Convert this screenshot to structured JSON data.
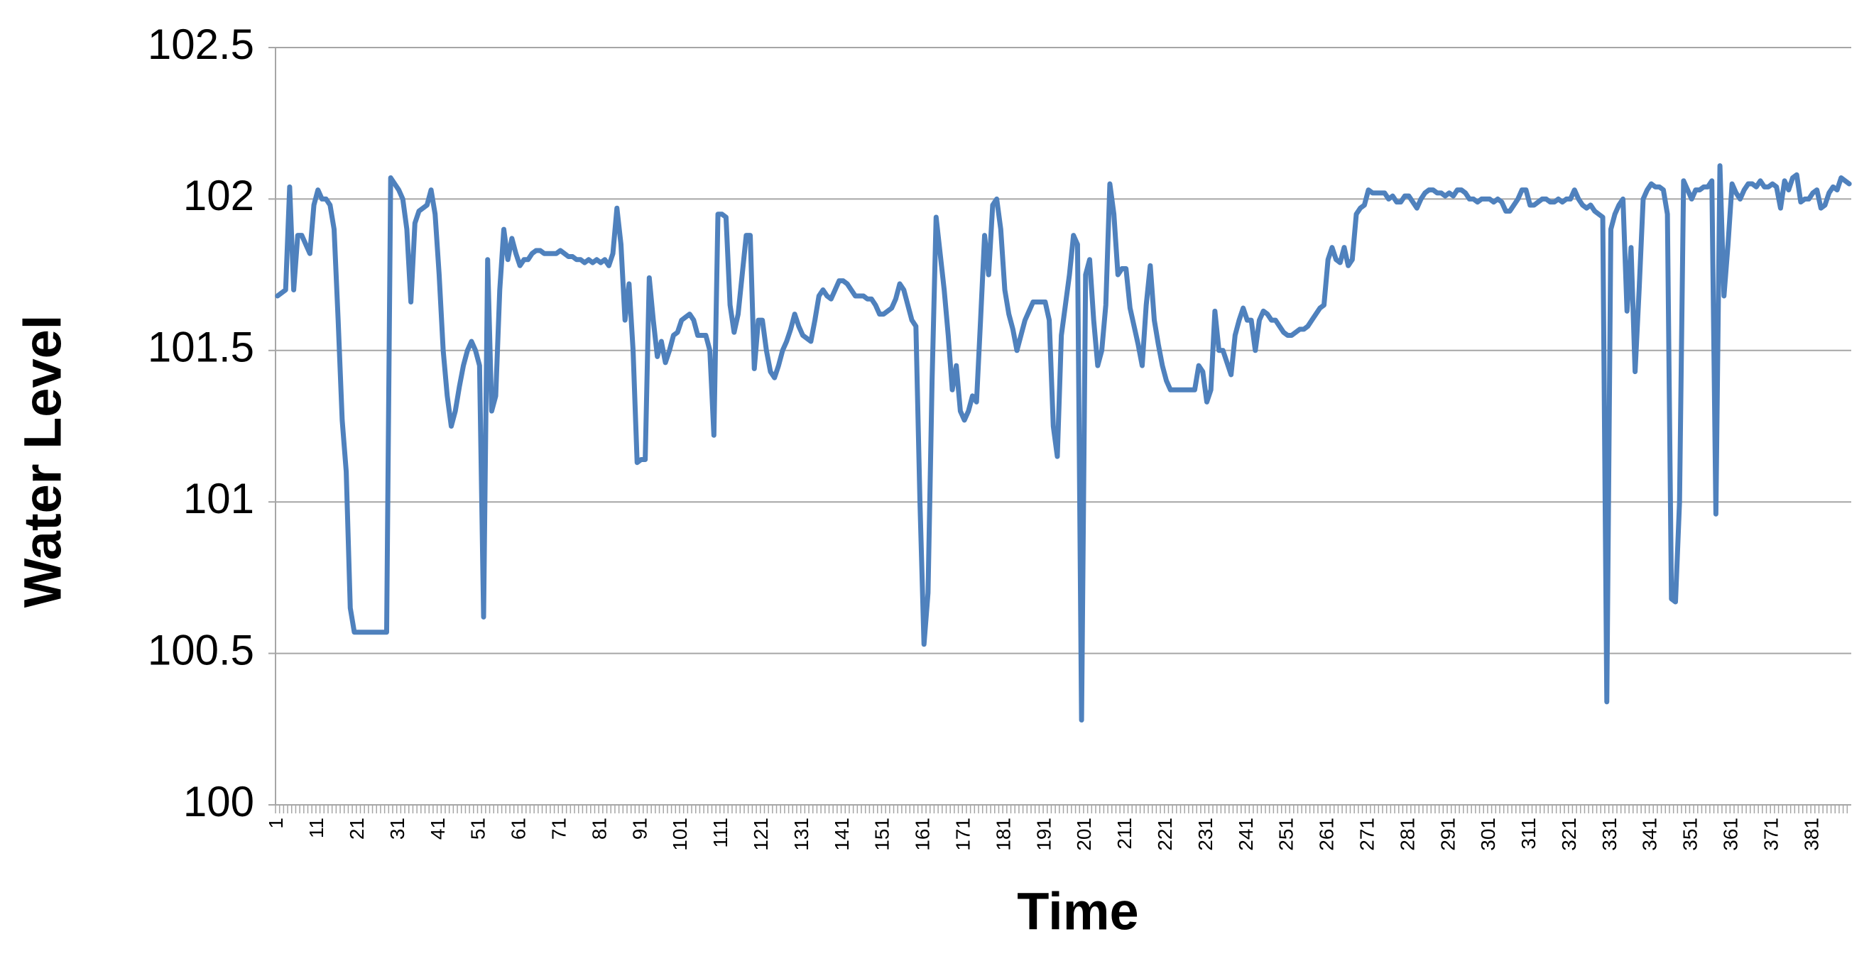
{
  "chart_data": {
    "type": "line",
    "xlabel": "Time",
    "ylabel": "Water Level",
    "categories": [
      "1",
      null,
      null,
      null,
      null,
      null,
      null,
      null,
      null,
      null,
      "11",
      null,
      null,
      null,
      null,
      null,
      null,
      null,
      null,
      null,
      "21",
      null,
      null,
      null,
      null,
      null,
      null,
      null,
      null,
      null,
      "31",
      null,
      null,
      null,
      null,
      null,
      null,
      null,
      null,
      null,
      "41",
      null,
      null,
      null,
      null,
      null,
      null,
      null,
      null,
      null,
      "51",
      null,
      null,
      null,
      null,
      null,
      null,
      null,
      null,
      null,
      "61",
      null,
      null,
      null,
      null,
      null,
      null,
      null,
      null,
      null,
      "71",
      null,
      null,
      null,
      null,
      null,
      null,
      null,
      null,
      null,
      "81",
      null,
      null,
      null,
      null,
      null,
      null,
      null,
      null,
      null,
      "91",
      null,
      null,
      null,
      null,
      null,
      null,
      null,
      null,
      null,
      "101",
      null,
      null,
      null,
      null,
      null,
      null,
      null,
      null,
      null,
      "111",
      null,
      null,
      null,
      null,
      null,
      null,
      null,
      null,
      null,
      "121",
      null,
      null,
      null,
      null,
      null,
      null,
      null,
      null,
      null,
      "131",
      null,
      null,
      null,
      null,
      null,
      null,
      null,
      null,
      null,
      "141",
      null,
      null,
      null,
      null,
      null,
      null,
      null,
      null,
      null,
      "151",
      null,
      null,
      null,
      null,
      null,
      null,
      null,
      null,
      null,
      "161",
      null,
      null,
      null,
      null,
      null,
      null,
      null,
      null,
      null,
      "171",
      null,
      null,
      null,
      null,
      null,
      null,
      null,
      null,
      null,
      "181",
      null,
      null,
      null,
      null,
      null,
      null,
      null,
      null,
      null,
      "191",
      null,
      null,
      null,
      null,
      null,
      null,
      null,
      null,
      null,
      "201",
      null,
      null,
      null,
      null,
      null,
      null,
      null,
      null,
      null,
      "211",
      null,
      null,
      null,
      null,
      null,
      null,
      null,
      null,
      null,
      "221",
      null,
      null,
      null,
      null,
      null,
      null,
      null,
      null,
      null,
      "231",
      null,
      null,
      null,
      null,
      null,
      null,
      null,
      null,
      null,
      "241",
      null,
      null,
      null,
      null,
      null,
      null,
      null,
      null,
      null,
      "251",
      null,
      null,
      null,
      null,
      null,
      null,
      null,
      null,
      null,
      "261",
      null,
      null,
      null,
      null,
      null,
      null,
      null,
      null,
      null,
      "271",
      null,
      null,
      null,
      null,
      null,
      null,
      null,
      null,
      null,
      "281",
      null,
      null,
      null,
      null,
      null,
      null,
      null,
      null,
      null,
      "291",
      null,
      null,
      null,
      null,
      null,
      null,
      null,
      null,
      null,
      "301",
      null,
      null,
      null,
      null,
      null,
      null,
      null,
      null,
      null,
      "311",
      null,
      null,
      null,
      null,
      null,
      null,
      null,
      null,
      null,
      "321",
      null,
      null,
      null,
      null,
      null,
      null,
      null,
      null,
      null,
      "331",
      null,
      null,
      null,
      null,
      null,
      null,
      null,
      null,
      null,
      "341",
      null,
      null,
      null,
      null,
      null,
      null,
      null,
      null,
      null,
      "351",
      null,
      null,
      null,
      null,
      null,
      null,
      null,
      null,
      null,
      "361",
      null,
      null,
      null,
      null,
      null,
      null,
      null,
      null,
      null,
      "371",
      null,
      null,
      null,
      null,
      null,
      null,
      null,
      null,
      null,
      "381",
      null,
      null,
      null,
      null,
      null,
      null,
      null,
      null,
      null
    ],
    "values": [
      101.68,
      101.69,
      101.7,
      102.04,
      101.7,
      101.88,
      101.88,
      101.85,
      101.82,
      101.98,
      102.03,
      102.0,
      102.0,
      101.98,
      101.9,
      101.6,
      101.27,
      101.1,
      100.65,
      100.57,
      100.57,
      100.57,
      100.57,
      100.57,
      100.57,
      100.57,
      100.57,
      100.57,
      102.07,
      102.05,
      102.03,
      102.0,
      101.9,
      101.66,
      101.92,
      101.96,
      101.97,
      101.98,
      102.03,
      101.95,
      101.75,
      101.5,
      101.35,
      101.25,
      101.3,
      101.38,
      101.45,
      101.5,
      101.53,
      101.5,
      101.45,
      100.62,
      101.8,
      101.3,
      101.35,
      101.7,
      101.9,
      101.8,
      101.87,
      101.82,
      101.78,
      101.8,
      101.8,
      101.82,
      101.83,
      101.83,
      101.82,
      101.82,
      101.82,
      101.82,
      101.83,
      101.82,
      101.81,
      101.81,
      101.8,
      101.8,
      101.79,
      101.8,
      101.79,
      101.8,
      101.79,
      101.8,
      101.78,
      101.82,
      101.97,
      101.85,
      101.6,
      101.72,
      101.5,
      101.13,
      101.14,
      101.14,
      101.74,
      101.6,
      101.48,
      101.53,
      101.46,
      101.5,
      101.55,
      101.56,
      101.6,
      101.61,
      101.62,
      101.6,
      101.55,
      101.55,
      101.55,
      101.5,
      101.22,
      101.95,
      101.95,
      101.94,
      101.65,
      101.56,
      101.62,
      101.75,
      101.88,
      101.88,
      101.44,
      101.6,
      101.6,
      101.5,
      101.43,
      101.41,
      101.45,
      101.5,
      101.53,
      101.57,
      101.62,
      101.58,
      101.55,
      101.54,
      101.53,
      101.6,
      101.68,
      101.7,
      101.68,
      101.67,
      101.7,
      101.73,
      101.73,
      101.72,
      101.7,
      101.68,
      101.68,
      101.68,
      101.67,
      101.67,
      101.65,
      101.62,
      101.62,
      101.63,
      101.64,
      101.67,
      101.72,
      101.7,
      101.65,
      101.6,
      101.58,
      101.0,
      100.53,
      100.7,
      101.4,
      101.94,
      101.82,
      101.7,
      101.55,
      101.37,
      101.45,
      101.3,
      101.27,
      101.3,
      101.35,
      101.33,
      101.6,
      101.88,
      101.75,
      101.98,
      102.0,
      101.9,
      101.7,
      101.62,
      101.57,
      101.5,
      101.55,
      101.6,
      101.63,
      101.66,
      101.66,
      101.66,
      101.66,
      101.6,
      101.25,
      101.15,
      101.55,
      101.65,
      101.75,
      101.88,
      101.85,
      100.28,
      101.75,
      101.8,
      101.6,
      101.45,
      101.5,
      101.65,
      102.05,
      101.95,
      101.75,
      101.77,
      101.77,
      101.64,
      101.58,
      101.52,
      101.45,
      101.65,
      101.78,
      101.6,
      101.52,
      101.45,
      101.4,
      101.37,
      101.37,
      101.37,
      101.37,
      101.37,
      101.37,
      101.37,
      101.45,
      101.43,
      101.33,
      101.37,
      101.63,
      101.5,
      101.5,
      101.46,
      101.42,
      101.55,
      101.6,
      101.64,
      101.6,
      101.6,
      101.5,
      101.6,
      101.63,
      101.62,
      101.6,
      101.6,
      101.58,
      101.56,
      101.55,
      101.55,
      101.56,
      101.57,
      101.57,
      101.58,
      101.6,
      101.62,
      101.64,
      101.65,
      101.8,
      101.84,
      101.8,
      101.79,
      101.84,
      101.78,
      101.8,
      101.95,
      101.97,
      101.98,
      102.03,
      102.02,
      102.02,
      102.02,
      102.02,
      102.0,
      102.01,
      101.99,
      101.99,
      102.01,
      102.01,
      101.99,
      101.97,
      102.0,
      102.02,
      102.03,
      102.03,
      102.02,
      102.02,
      102.01,
      102.02,
      102.01,
      102.03,
      102.03,
      102.02,
      102.0,
      102.0,
      101.99,
      102.0,
      102.0,
      102.0,
      101.99,
      102.0,
      101.99,
      101.96,
      101.96,
      101.98,
      102.0,
      102.03,
      102.03,
      101.98,
      101.98,
      101.99,
      102.0,
      102.0,
      101.99,
      101.99,
      102.0,
      101.99,
      102.0,
      102.0,
      102.03,
      102.0,
      101.98,
      101.97,
      101.98,
      101.96,
      101.95,
      101.94,
      100.34,
      101.9,
      101.95,
      101.98,
      102.0,
      101.63,
      101.84,
      101.43,
      101.7,
      102.0,
      102.03,
      102.05,
      102.04,
      102.04,
      102.03,
      101.95,
      100.68,
      100.67,
      101.0,
      102.06,
      102.03,
      102.0,
      102.03,
      102.03,
      102.04,
      102.04,
      102.06,
      100.96,
      102.11,
      101.68,
      101.85,
      102.05,
      102.02,
      102.0,
      102.03,
      102.05,
      102.05,
      102.04,
      102.06,
      102.04,
      102.04,
      102.05,
      102.04,
      101.97,
      102.06,
      102.03,
      102.07,
      102.08,
      101.99,
      102.0,
      102.0,
      102.02,
      102.03,
      101.97,
      101.98,
      102.02,
      102.04,
      102.03,
      102.07,
      102.06,
      102.05
    ],
    "color": "#4f81bd",
    "ylim": [
      100,
      102.5
    ],
    "yticks": [
      100,
      100.5,
      101,
      101.5,
      102,
      102.5
    ],
    "grid": true
  }
}
